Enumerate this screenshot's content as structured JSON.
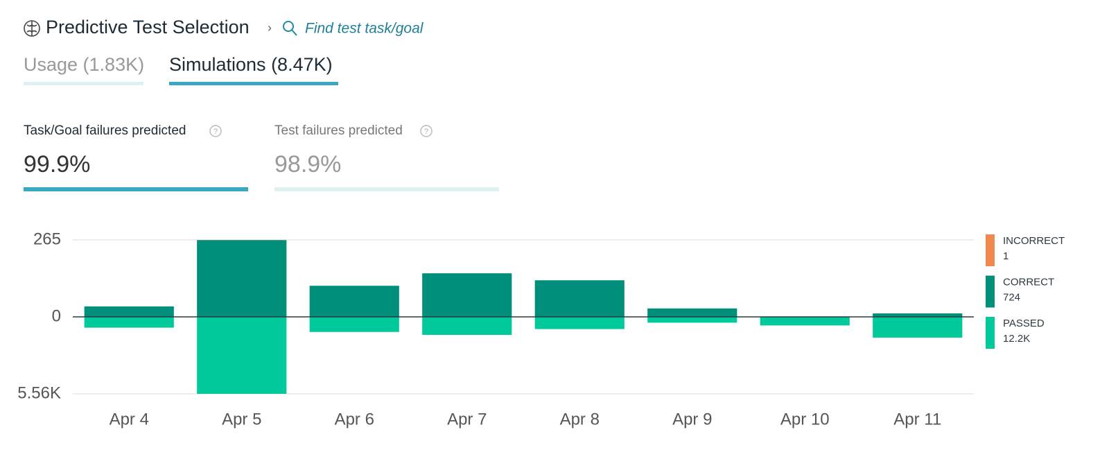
{
  "header": {
    "title": "Predictive Test Selection",
    "search": "Find test task/goal"
  },
  "tabs": [
    {
      "label": "Usage (1.83K)",
      "active": false
    },
    {
      "label": "Simulations (8.47K)",
      "active": true
    }
  ],
  "metrics": [
    {
      "label": "Task/Goal failures predicted",
      "value": "99.9%",
      "active": true
    },
    {
      "label": "Test failures predicted",
      "value": "98.9%",
      "active": false
    }
  ],
  "chart_data": {
    "type": "bar",
    "categories": [
      "Apr 4",
      "Apr 5",
      "Apr 6",
      "Apr 7",
      "Apr 8",
      "Apr 9",
      "Apr 10",
      "Apr 11"
    ],
    "series": [
      {
        "name": "INCORRECT",
        "color": "#f0894f",
        "total": 1,
        "values": [
          0,
          1,
          0,
          0,
          0,
          0,
          0,
          0
        ]
      },
      {
        "name": "CORRECT",
        "color": "#008f7a",
        "total": 724,
        "values": [
          36,
          264,
          107,
          150,
          126,
          29,
          0,
          12
        ]
      },
      {
        "name": "PASSED",
        "color": "#00c99b",
        "total": {
          "value": 12200,
          "label": "12.2K"
        },
        "axis": "y2",
        "values": [
          780,
          5560,
          1090,
          1300,
          880,
          420,
          620,
          1500
        ]
      }
    ],
    "ylim": [
      0,
      265
    ],
    "yticks": [
      0,
      265
    ],
    "y2lim": [
      0,
      5560
    ],
    "y2ticks": [
      {
        "value": 5560,
        "label": "5.56K"
      }
    ]
  }
}
